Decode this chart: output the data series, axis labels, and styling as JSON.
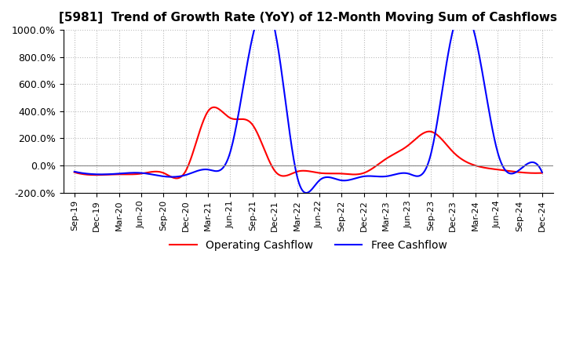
{
  "title": "[5981]  Trend of Growth Rate (YoY) of 12-Month Moving Sum of Cashflows",
  "title_fontsize": 11,
  "ylim": [
    -200,
    1000
  ],
  "yticks": [
    -200,
    0,
    200,
    400,
    600,
    800,
    1000
  ],
  "ytick_labels": [
    "-200.0%",
    "0.0%",
    "200.0%",
    "400.0%",
    "600.0%",
    "800.0%",
    "1000.0%"
  ],
  "background_color": "#ffffff",
  "grid_color": "#bbbbbb",
  "operating_color": "#ff0000",
  "free_color": "#0000ff",
  "legend_labels": [
    "Operating Cashflow",
    "Free Cashflow"
  ],
  "x_labels": [
    "Sep-19",
    "Dec-19",
    "Mar-20",
    "Jun-20",
    "Sep-20",
    "Dec-20",
    "Mar-21",
    "Jun-21",
    "Sep-21",
    "Dec-21",
    "Mar-22",
    "Jun-22",
    "Sep-22",
    "Dec-22",
    "Mar-23",
    "Jun-23",
    "Sep-23",
    "Dec-23",
    "Mar-24",
    "Jun-24",
    "Sep-24",
    "Dec-24"
  ],
  "operating_cashflow": [
    -50,
    -70,
    -65,
    -60,
    -55,
    -40,
    400,
    350,
    300,
    -40,
    -45,
    -55,
    -60,
    -55,
    50,
    150,
    250,
    100,
    0,
    -30,
    -50,
    -55
  ],
  "free_cashflow": [
    -45,
    -65,
    -60,
    -55,
    -80,
    -70,
    -30,
    100,
    950,
    1000,
    -80,
    -110,
    -110,
    -80,
    -80,
    -60,
    80,
    1000,
    950,
    100,
    -30,
    -50
  ]
}
